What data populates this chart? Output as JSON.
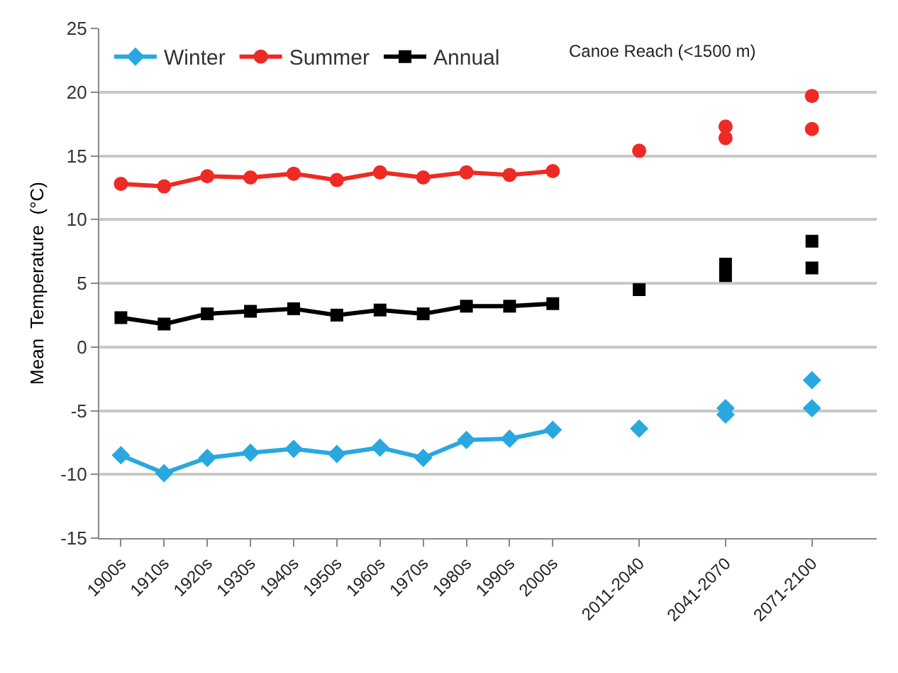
{
  "chart_data": {
    "type": "line",
    "ylabel": "Mean  Temperature  (°C)",
    "annotations": [
      "Canoe Reach (<1500 m)"
    ],
    "categories": [
      "1900s",
      "1910s",
      "1920s",
      "1930s",
      "1940s",
      "1950s",
      "1960s",
      "1970s",
      "1980s",
      "1990s",
      "2000s",
      null,
      "2011-2040",
      null,
      "2041-2070",
      null,
      "2071-2100",
      null
    ],
    "ylim": [
      -15,
      25
    ],
    "yticks": [
      -15,
      -10,
      -5,
      0,
      5,
      10,
      15,
      20,
      25
    ],
    "grid": "y",
    "legend": "top left",
    "line_style": "solid",
    "series": [
      {
        "name": "Winter",
        "color": "#29a8e0",
        "marker": "diamond",
        "values": [
          -8.5,
          -9.9,
          -8.7,
          -8.3,
          -8.0,
          -8.4,
          -7.9,
          -8.7,
          -7.3,
          -7.2,
          -6.5,
          null,
          null,
          null,
          null,
          null,
          null,
          null
        ]
      },
      {
        "name": "Summer",
        "color": "#ee2a24",
        "marker": "circle",
        "values": [
          12.8,
          12.6,
          13.4,
          13.3,
          13.6,
          13.1,
          13.7,
          13.3,
          13.7,
          13.5,
          13.8,
          null,
          null,
          null,
          null,
          null,
          null,
          null
        ]
      },
      {
        "name": "Annual",
        "color": "#000000",
        "marker": "square",
        "values": [
          2.3,
          1.8,
          2.6,
          2.8,
          3.0,
          2.5,
          2.9,
          2.6,
          3.2,
          3.2,
          3.4,
          null,
          null,
          null,
          null,
          null,
          null,
          null
        ]
      },
      {
        "type": "scatter",
        "color": "#29a8e0",
        "marker": "diamond",
        "x": [
          "2011-2040",
          "2041-2070",
          "2041-2070",
          "2071-2100",
          "2071-2100"
        ],
        "values": [
          -6.4,
          -4.8,
          -5.3,
          -2.6,
          -4.8
        ]
      },
      {
        "type": "scatter",
        "color": "#ee2a24",
        "marker": "circle",
        "x": [
          "2011-2040",
          "2041-2070",
          "2041-2070",
          "2071-2100",
          "2071-2100"
        ],
        "values": [
          15.4,
          17.3,
          16.4,
          19.7,
          17.1
        ]
      },
      {
        "type": "scatter",
        "color": "#000000",
        "marker": "square",
        "x": [
          "2011-2040",
          "2041-2070",
          "2041-2070",
          "2071-2100",
          "2071-2100"
        ],
        "values": [
          4.5,
          6.5,
          5.6,
          8.3,
          6.2
        ]
      }
    ]
  }
}
